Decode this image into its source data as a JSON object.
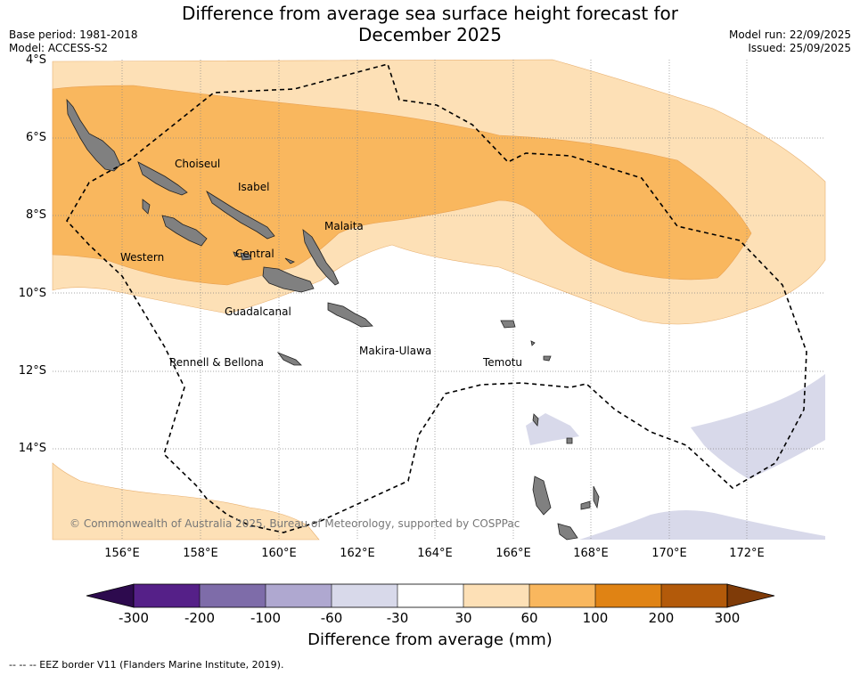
{
  "header": {
    "title_line1": "Difference from average sea surface height forecast for",
    "title_line2": "December 2025",
    "base_period": "Base period: 1981-2018",
    "model": "Model: ACCESS-S2",
    "model_run": "Model run: 22/09/2025",
    "issued": "Issued: 25/09/2025"
  },
  "map": {
    "lat_labels": [
      "4°S",
      "6°S",
      "8°S",
      "10°S",
      "12°S",
      "14°S"
    ],
    "lon_labels": [
      "156°E",
      "158°E",
      "160°E",
      "162°E",
      "164°E",
      "166°E",
      "168°E",
      "170°E",
      "172°E"
    ],
    "places": {
      "choiseul": "Choiseul",
      "isabel": "Isabel",
      "malaita": "Malaita",
      "western": "Western",
      "central": "Central",
      "guadalcanal": "Guadalcanal",
      "rennell": "Rennell & Bellona",
      "makira": "Makira-Ulawa",
      "temotu": "Temotu"
    },
    "copyright": "© Commonwealth of Australia 2025, Bureau of Meteorology, supported by COSPPac"
  },
  "colorbar": {
    "ticks": [
      "-300",
      "-200",
      "-100",
      "-60",
      "-30",
      "30",
      "60",
      "100",
      "200",
      "300"
    ],
    "colors": {
      "below_min": "#2d0a4e",
      "c1": "#552088",
      "c2": "#7e6ca9",
      "c3": "#afa8d0",
      "c4": "#d8d9ea",
      "c5": "#ffffff",
      "c6": "#fde0b6",
      "c7": "#f9b75e",
      "c8": "#e08314",
      "c9": "#b35a0a",
      "above_max": "#7f3b08"
    },
    "title": "Difference from average (mm)"
  },
  "legend": {
    "eez": "--  --  -- EEZ border V11 (Flanders Marine Institute, 2019)."
  }
}
